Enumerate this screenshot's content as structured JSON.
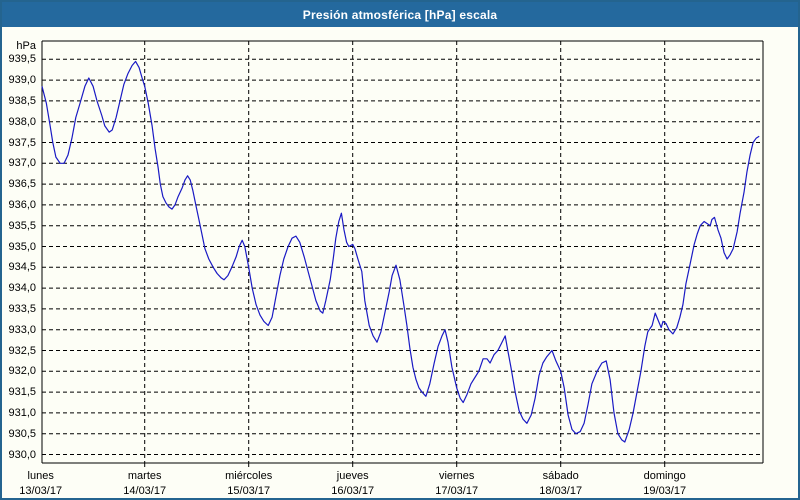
{
  "window": {
    "title": "Presión atmosférica [hPa] escala",
    "titlebar_bg": "#24699e",
    "titlebar_text_color": "#ffffff",
    "border_color": "#24648f",
    "background": "#fdfef6"
  },
  "chart_data": {
    "type": "line",
    "title": "Presión atmosférica [hPa] escala",
    "grid": "dashed-black",
    "legend": "none",
    "line_color": "#1a1ac4",
    "y_axis": {
      "unit_label": "hPa",
      "min": 930.0,
      "max": 939.5,
      "step": 0.5,
      "decimal_separator": ",",
      "tick_labels": [
        "939,5",
        "939,0",
        "938,5",
        "938,0",
        "937,5",
        "937,0",
        "936,5",
        "936,0",
        "935,5",
        "935,0",
        "934,5",
        "934,0",
        "933,5",
        "933,0",
        "932,5",
        "932,0",
        "931,5",
        "931,0",
        "930,5",
        "930,0"
      ]
    },
    "x_axis": {
      "days": [
        {
          "name": "lunes",
          "date": "13/03/17",
          "hour": 0
        },
        {
          "name": "martes",
          "date": "14/03/17",
          "hour": 24
        },
        {
          "name": "miércoles",
          "date": "15/03/17",
          "hour": 48
        },
        {
          "name": "jueves",
          "date": "16/03/17",
          "hour": 72
        },
        {
          "name": "viernes",
          "date": "17/03/17",
          "hour": 96
        },
        {
          "name": "sábado",
          "date": "18/03/17",
          "hour": 120
        },
        {
          "name": "domingo",
          "date": "19/03/17",
          "hour": 144
        }
      ],
      "hours_per_day": 24
    },
    "series": [
      {
        "name": "Presión atmosférica",
        "points_hour_hpa": [
          [
            0.3,
            938.85
          ],
          [
            1.3,
            938.45
          ],
          [
            2.1,
            937.95
          ],
          [
            2.8,
            937.5
          ],
          [
            3.5,
            937.15
          ],
          [
            4.5,
            937.0
          ],
          [
            5.4,
            937.0
          ],
          [
            6.3,
            937.2
          ],
          [
            7.2,
            937.6
          ],
          [
            8.1,
            938.1
          ],
          [
            9.1,
            938.45
          ],
          [
            10.2,
            938.85
          ],
          [
            11.1,
            939.05
          ],
          [
            12.1,
            938.85
          ],
          [
            13.0,
            938.5
          ],
          [
            14.1,
            938.15
          ],
          [
            14.8,
            937.9
          ],
          [
            15.8,
            937.75
          ],
          [
            16.5,
            937.8
          ],
          [
            17.4,
            938.1
          ],
          [
            18.3,
            938.5
          ],
          [
            19.2,
            938.9
          ],
          [
            20.1,
            939.15
          ],
          [
            21.1,
            939.35
          ],
          [
            21.9,
            939.45
          ],
          [
            22.7,
            939.3
          ],
          [
            23.4,
            939.05
          ],
          [
            24.0,
            938.85
          ],
          [
            24.8,
            938.45
          ],
          [
            25.7,
            937.9
          ],
          [
            26.4,
            937.35
          ],
          [
            27.1,
            936.9
          ],
          [
            27.6,
            936.5
          ],
          [
            28.2,
            936.2
          ],
          [
            28.9,
            936.05
          ],
          [
            29.6,
            935.95
          ],
          [
            30.3,
            935.9
          ],
          [
            31.0,
            936.0
          ],
          [
            31.7,
            936.2
          ],
          [
            32.6,
            936.4
          ],
          [
            33.3,
            936.6
          ],
          [
            33.9,
            936.7
          ],
          [
            34.5,
            936.6
          ],
          [
            35.1,
            936.35
          ],
          [
            35.8,
            936.0
          ],
          [
            36.5,
            935.65
          ],
          [
            37.2,
            935.3
          ],
          [
            37.9,
            934.95
          ],
          [
            38.8,
            934.7
          ],
          [
            39.8,
            934.5
          ],
          [
            40.7,
            934.35
          ],
          [
            41.6,
            934.25
          ],
          [
            42.3,
            934.2
          ],
          [
            43.2,
            934.3
          ],
          [
            44.1,
            934.5
          ],
          [
            45.1,
            934.75
          ],
          [
            45.8,
            935.0
          ],
          [
            46.5,
            935.15
          ],
          [
            47.1,
            935.0
          ],
          [
            48.0,
            934.5
          ],
          [
            48.8,
            934.0
          ],
          [
            49.7,
            933.6
          ],
          [
            50.6,
            933.35
          ],
          [
            51.5,
            933.2
          ],
          [
            52.5,
            933.1
          ],
          [
            53.4,
            933.3
          ],
          [
            54.3,
            933.8
          ],
          [
            55.2,
            934.3
          ],
          [
            56.1,
            934.7
          ],
          [
            57.1,
            935.0
          ],
          [
            58.0,
            935.2
          ],
          [
            58.9,
            935.25
          ],
          [
            59.8,
            935.1
          ],
          [
            60.8,
            934.75
          ],
          [
            61.7,
            934.4
          ],
          [
            62.6,
            934.05
          ],
          [
            63.5,
            933.7
          ],
          [
            64.5,
            933.45
          ],
          [
            65.1,
            933.4
          ],
          [
            65.8,
            933.7
          ],
          [
            66.8,
            934.2
          ],
          [
            67.5,
            934.7
          ],
          [
            68.1,
            935.2
          ],
          [
            68.8,
            935.6
          ],
          [
            69.4,
            935.8
          ],
          [
            70.0,
            935.4
          ],
          [
            70.6,
            935.1
          ],
          [
            71.1,
            935.0
          ],
          [
            72.0,
            935.05
          ],
          [
            72.5,
            934.95
          ],
          [
            73.2,
            934.7
          ],
          [
            74.1,
            934.4
          ],
          [
            74.8,
            933.7
          ],
          [
            75.8,
            933.1
          ],
          [
            76.7,
            932.85
          ],
          [
            77.6,
            932.7
          ],
          [
            78.5,
            932.95
          ],
          [
            79.4,
            933.4
          ],
          [
            80.4,
            933.9
          ],
          [
            81.1,
            934.3
          ],
          [
            82.0,
            934.55
          ],
          [
            82.9,
            934.2
          ],
          [
            83.8,
            933.6
          ],
          [
            84.5,
            933.1
          ],
          [
            85.2,
            932.55
          ],
          [
            85.9,
            932.1
          ],
          [
            86.6,
            931.8
          ],
          [
            87.3,
            931.6
          ],
          [
            88.0,
            931.5
          ],
          [
            88.9,
            931.4
          ],
          [
            89.8,
            931.7
          ],
          [
            90.8,
            932.2
          ],
          [
            91.7,
            932.6
          ],
          [
            92.6,
            932.85
          ],
          [
            93.3,
            933.0
          ],
          [
            94.0,
            932.7
          ],
          [
            94.9,
            932.1
          ],
          [
            96.0,
            931.6
          ],
          [
            96.8,
            931.35
          ],
          [
            97.5,
            931.25
          ],
          [
            98.4,
            931.45
          ],
          [
            99.3,
            931.7
          ],
          [
            100.2,
            931.85
          ],
          [
            101.1,
            932.0
          ],
          [
            102.1,
            932.3
          ],
          [
            103.0,
            932.3
          ],
          [
            103.7,
            932.2
          ],
          [
            104.6,
            932.4
          ],
          [
            105.5,
            932.5
          ],
          [
            107.2,
            932.85
          ],
          [
            107.8,
            932.5
          ],
          [
            108.5,
            932.1
          ],
          [
            109.5,
            931.5
          ],
          [
            110.4,
            931.05
          ],
          [
            111.3,
            930.85
          ],
          [
            112.2,
            930.75
          ],
          [
            113.2,
            930.95
          ],
          [
            114.1,
            931.35
          ],
          [
            115.0,
            931.9
          ],
          [
            115.9,
            932.2
          ],
          [
            116.8,
            932.35
          ],
          [
            118.0,
            932.5
          ],
          [
            118.9,
            932.25
          ],
          [
            120.0,
            932.0
          ],
          [
            120.8,
            931.6
          ],
          [
            121.7,
            930.95
          ],
          [
            122.6,
            930.6
          ],
          [
            123.5,
            930.5
          ],
          [
            124.5,
            930.55
          ],
          [
            125.4,
            930.75
          ],
          [
            126.3,
            931.2
          ],
          [
            127.2,
            931.7
          ],
          [
            128.4,
            932.0
          ],
          [
            129.5,
            932.2
          ],
          [
            130.5,
            932.25
          ],
          [
            131.4,
            931.8
          ],
          [
            132.3,
            931.0
          ],
          [
            133.2,
            930.5
          ],
          [
            134.1,
            930.35
          ],
          [
            134.8,
            930.3
          ],
          [
            135.8,
            930.6
          ],
          [
            136.7,
            931.0
          ],
          [
            137.6,
            931.5
          ],
          [
            138.5,
            932.0
          ],
          [
            139.4,
            932.6
          ],
          [
            140.1,
            932.95
          ],
          [
            141.1,
            933.1
          ],
          [
            141.8,
            933.4
          ],
          [
            142.6,
            933.2
          ],
          [
            143.2,
            933.05
          ],
          [
            143.6,
            933.2
          ],
          [
            144.3,
            933.15
          ],
          [
            145.0,
            933.0
          ],
          [
            145.9,
            932.9
          ],
          [
            146.8,
            933.05
          ],
          [
            147.5,
            933.3
          ],
          [
            148.2,
            933.6
          ],
          [
            148.9,
            934.1
          ],
          [
            149.9,
            934.6
          ],
          [
            150.8,
            935.05
          ],
          [
            151.5,
            935.3
          ],
          [
            152.2,
            935.5
          ],
          [
            153.1,
            935.6
          ],
          [
            153.8,
            935.55
          ],
          [
            154.5,
            935.5
          ],
          [
            154.9,
            935.65
          ],
          [
            155.5,
            935.7
          ],
          [
            156.3,
            935.4
          ],
          [
            157.0,
            935.2
          ],
          [
            157.7,
            934.85
          ],
          [
            158.4,
            934.7
          ],
          [
            159.1,
            934.8
          ],
          [
            159.8,
            934.95
          ],
          [
            160.7,
            935.35
          ],
          [
            161.4,
            935.8
          ],
          [
            162.3,
            936.3
          ],
          [
            163.0,
            936.8
          ],
          [
            163.7,
            937.2
          ],
          [
            164.4,
            937.5
          ],
          [
            165.1,
            937.6
          ],
          [
            165.8,
            937.65
          ]
        ]
      }
    ]
  }
}
